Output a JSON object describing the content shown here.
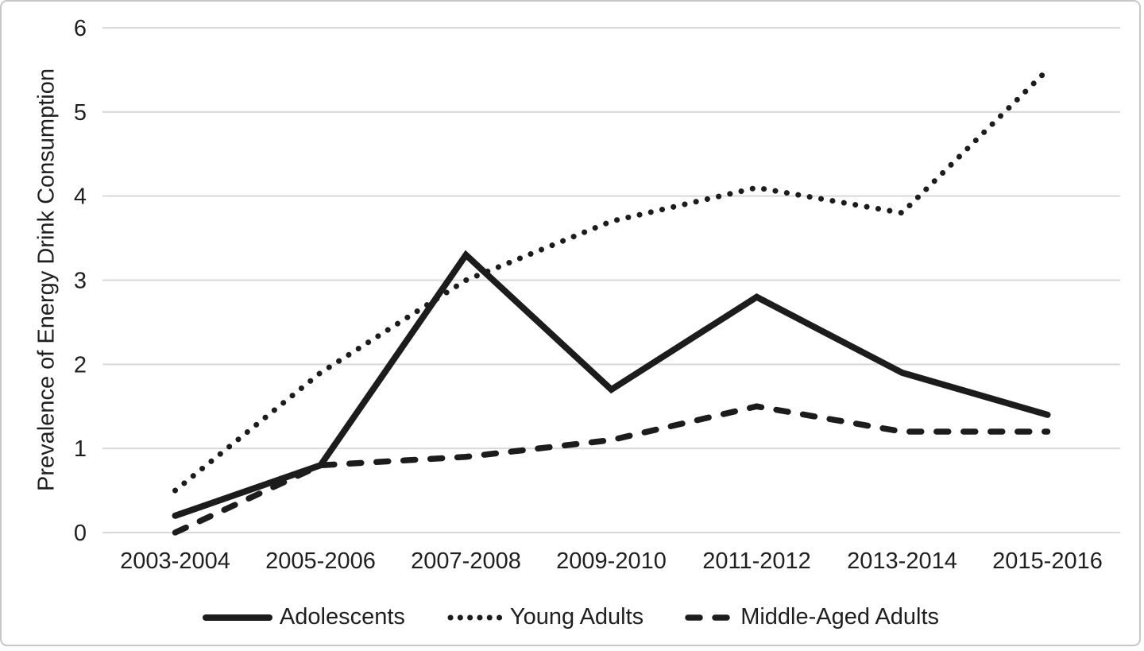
{
  "chart_data": {
    "type": "line",
    "categories": [
      "2003-2004",
      "2005-2006",
      "2007-2008",
      "2009-2010",
      "2011-2012",
      "2013-2014",
      "2015-2016"
    ],
    "series": [
      {
        "name": "Adolescents",
        "line_style": "solid",
        "values": [
          0.2,
          0.8,
          3.3,
          1.7,
          2.8,
          1.9,
          1.4
        ]
      },
      {
        "name": "Young Adults",
        "line_style": "dotted",
        "values": [
          0.5,
          1.9,
          3.0,
          3.7,
          4.1,
          3.8,
          5.5
        ]
      },
      {
        "name": "Middle-Aged Adults",
        "line_style": "dashed",
        "values": [
          0.0,
          0.8,
          0.9,
          1.1,
          1.5,
          1.2,
          1.2
        ]
      }
    ],
    "ylabel": "Prevalence of Energy Drink Consumption",
    "xlabel": "",
    "ylim": [
      0,
      6
    ],
    "y_ticks": [
      0,
      1,
      2,
      3,
      4,
      5,
      6
    ],
    "grid": true,
    "legend_position": "bottom",
    "colors": {
      "line": "#1c1c1c",
      "gridline": "#d9d9d9",
      "text": "#1f1f1f",
      "frame_border": "#c7c7c7",
      "background": "#ffffff"
    }
  }
}
